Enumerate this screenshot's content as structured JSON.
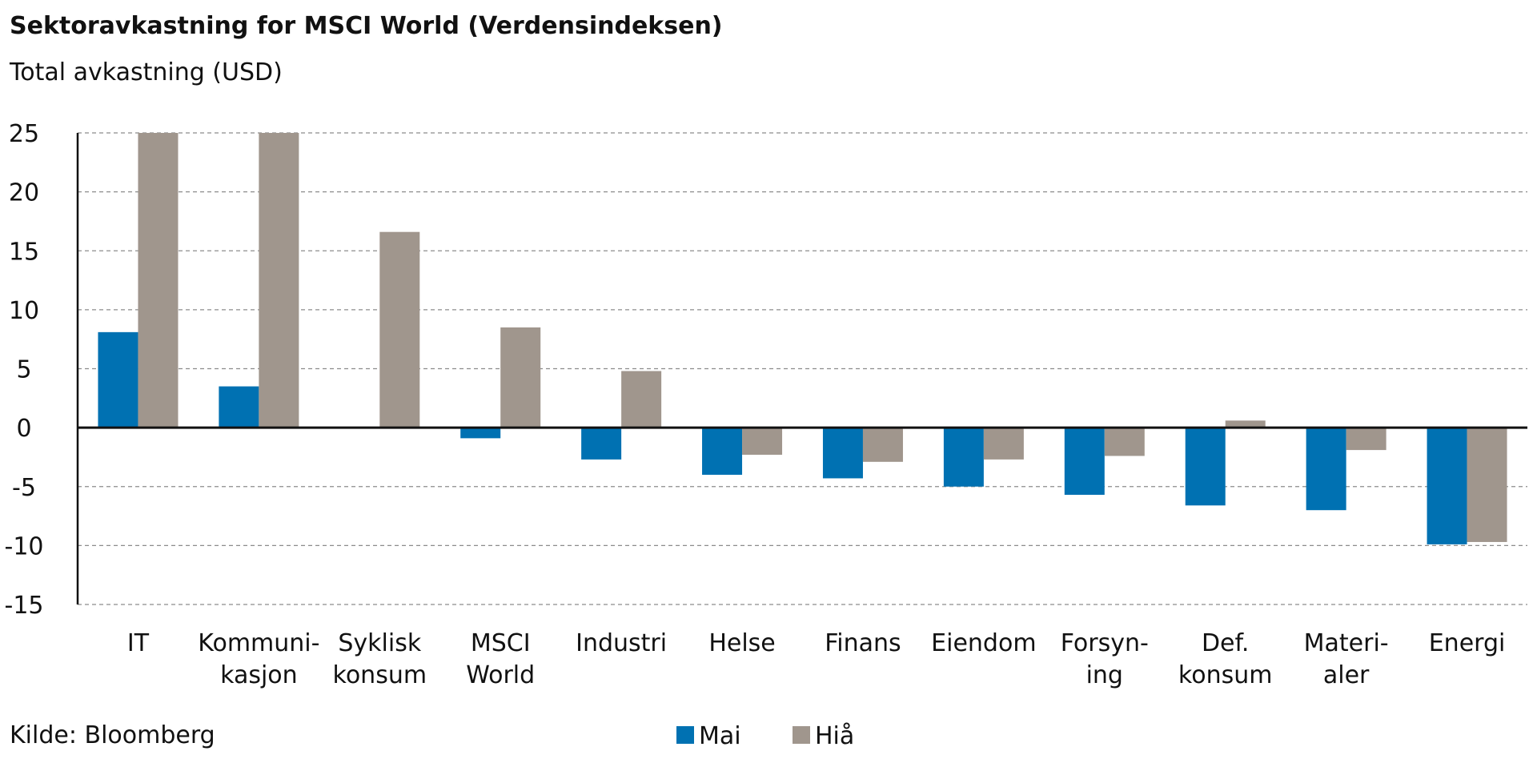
{
  "chart_data": {
    "type": "bar",
    "title": "Sektoravkastning for MSCI World (Verdensindeksen)",
    "subtitle": "Total avkastning (USD)",
    "source": "Kilde: Bloomberg",
    "ylim": [
      -15,
      25
    ],
    "yticks": [
      25,
      20,
      15,
      10,
      5,
      0,
      -5,
      -10,
      -15
    ],
    "ytick_labels": [
      "25",
      "20",
      "15",
      "10",
      "5",
      "0",
      "-5",
      "-10",
      "-15"
    ],
    "grid": true,
    "legend_position": "bottom-center",
    "categories": [
      [
        "IT"
      ],
      [
        "Kommuni-",
        "kasjon"
      ],
      [
        "Syklisk",
        "konsum"
      ],
      [
        "MSCI",
        "World"
      ],
      [
        "Industri"
      ],
      [
        "Helse"
      ],
      [
        "Finans"
      ],
      [
        "Eiendom"
      ],
      [
        "Forsyn-",
        "ing"
      ],
      [
        "Def.",
        "konsum"
      ],
      [
        "Materi-",
        "aler"
      ],
      [
        "Energi"
      ]
    ],
    "series": [
      {
        "name": "Mai",
        "color": "#0071b2",
        "values": [
          8.1,
          3.5,
          0.0,
          -0.9,
          -2.7,
          -4.0,
          -4.3,
          -5.0,
          -5.7,
          -6.6,
          -7.0,
          -9.9
        ]
      },
      {
        "name": "Hiå",
        "color": "#a0968d",
        "values": [
          25.0,
          25.0,
          16.6,
          8.5,
          4.8,
          -2.3,
          -2.9,
          -2.7,
          -2.4,
          0.6,
          -1.9,
          -9.7
        ]
      }
    ]
  }
}
